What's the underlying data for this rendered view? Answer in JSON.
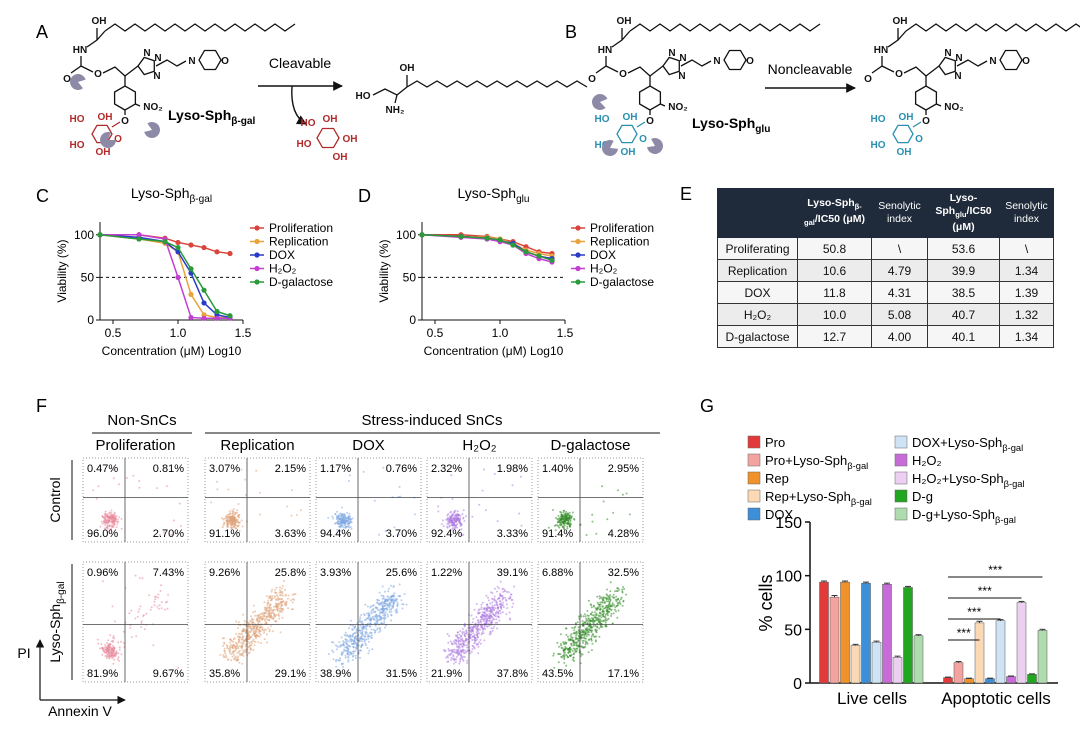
{
  "panel_a": {
    "label": "A",
    "arrow_label": "Cleavable",
    "compound": {
      "text": "Lyso-Sph",
      "sub": "β-gal"
    },
    "probe_atoms": [
      "OH",
      "HN",
      "O",
      "O",
      "N",
      "N",
      "N",
      "N",
      "O",
      "NO₂",
      "O"
    ],
    "sugar_atoms": [
      "HO",
      "OH",
      "HO",
      "OH",
      "O"
    ],
    "product_atoms": [
      "HO",
      "OH",
      "NH₂"
    ],
    "released_sugar_atoms": [
      "HO",
      "OH",
      "HO",
      "OH",
      "OH"
    ]
  },
  "panel_b": {
    "label": "B",
    "arrow_label": "Noncleavable",
    "compound": {
      "text": "Lyso-Sph",
      "sub": "glu"
    },
    "probe_atoms": [
      "OH",
      "HN",
      "O",
      "O",
      "N",
      "N",
      "N",
      "N",
      "O",
      "NO₂",
      "O"
    ],
    "sugar_atoms": [
      "HO",
      "OH",
      "HO",
      "OH",
      "O"
    ],
    "product_atoms": [
      "OH",
      "HN",
      "O",
      "O",
      "N",
      "N",
      "N",
      "N",
      "O",
      "NO₂",
      "O"
    ],
    "product_sugar_atoms": [
      "HO",
      "OH",
      "HO",
      "OH",
      "O"
    ]
  },
  "chart_data": [
    {
      "panel_label": "C",
      "type": "line",
      "title": {
        "text": "Lyso-Sph",
        "sub": "β-gal"
      },
      "x_label": "Concentration (μM) Log10",
      "y_label": "Viability (%)",
      "x": [
        0.4,
        0.7,
        0.9,
        1.0,
        1.1,
        1.2,
        1.3,
        1.4
      ],
      "xlim": [
        0.4,
        1.5
      ],
      "xticks": [
        0.5,
        {
          "value": 1,
          "label": "1.0"
        },
        1.5
      ],
      "ylim": [
        0,
        115
      ],
      "yticks": [
        0,
        50,
        100
      ],
      "reference_line": 50,
      "series": [
        {
          "name": "Proliferation",
          "color": "#d9453d",
          "values": [
            100,
            100,
            96,
            91,
            88,
            85,
            80,
            78
          ]
        },
        {
          "name": "Replication",
          "color": "#e8a33a",
          "values": [
            100,
            95,
            90,
            80,
            30,
            6,
            3,
            3
          ]
        },
        {
          "name": "DOX",
          "color": "#2b3bc9",
          "values": [
            100,
            97,
            92,
            80,
            55,
            20,
            6,
            3
          ]
        },
        {
          "name": "H₂O₂",
          "color": "#c23fd1",
          "values": [
            100,
            100,
            95,
            50,
            3,
            2,
            2,
            2
          ]
        },
        {
          "name": "D-galactose",
          "color": "#2a9a3a",
          "values": [
            100,
            95,
            92,
            85,
            60,
            35,
            10,
            5
          ]
        }
      ]
    },
    {
      "panel_label": "D",
      "type": "line",
      "title": {
        "text": "Lyso-Sph",
        "sub": "glu"
      },
      "x_label": "Concentration (μM) Log10",
      "y_label": "Viability (%)",
      "x": [
        0.4,
        0.7,
        0.9,
        1.0,
        1.1,
        1.2,
        1.3,
        1.4
      ],
      "xlim": [
        0.4,
        1.5
      ],
      "xticks": [
        0.5,
        {
          "value": 1,
          "label": "1.0"
        },
        1.5
      ],
      "ylim": [
        0,
        115
      ],
      "yticks": [
        0,
        50,
        100
      ],
      "reference_line": 50,
      "series": [
        {
          "name": "Proliferation",
          "color": "#d9453d",
          "values": [
            100,
            100,
            98,
            95,
            92,
            86,
            80,
            78
          ]
        },
        {
          "name": "Replication",
          "color": "#e8a33a",
          "values": [
            100,
            98,
            97,
            95,
            90,
            82,
            78,
            75
          ]
        },
        {
          "name": "DOX",
          "color": "#2b3bc9",
          "values": [
            100,
            98,
            96,
            93,
            90,
            80,
            75,
            72
          ]
        },
        {
          "name": "H₂O₂",
          "color": "#c23fd1",
          "values": [
            100,
            97,
            95,
            92,
            88,
            78,
            72,
            68
          ]
        },
        {
          "name": "D-galactose",
          "color": "#2a9a3a",
          "values": [
            100,
            98,
            96,
            94,
            88,
            80,
            75,
            70
          ]
        }
      ]
    },
    {
      "panel_label": "G",
      "type": "bar",
      "y_label": "% cells",
      "categories": [
        "Live cells",
        "Apoptotic cells"
      ],
      "ylim": [
        0,
        150
      ],
      "yticks": [
        0,
        50,
        100,
        150
      ],
      "significance": [
        "***",
        "***",
        "***",
        "***"
      ],
      "series": [
        {
          "name": "Pro",
          "color": "#e23a3a",
          "values": [
            94,
            5
          ],
          "errors": [
            1,
            0.5
          ]
        },
        {
          "name": {
            "text": "Pro+Lyso-Sph",
            "sub": "β-gal"
          },
          "color": "#f3a3a0",
          "values": [
            80,
            19
          ],
          "errors": [
            1.5,
            1
          ]
        },
        {
          "name": "Rep",
          "color": "#f0912a",
          "values": [
            94,
            4
          ],
          "errors": [
            1,
            0.5
          ]
        },
        {
          "name": {
            "text": "Rep+Lyso-Sph",
            "sub": "β-gal"
          },
          "color": "#fcd9b5",
          "values": [
            35,
            56
          ],
          "errors": [
            1,
            1.5
          ]
        },
        {
          "name": "DOX",
          "color": "#3d8fd8",
          "values": [
            93,
            4
          ],
          "errors": [
            1,
            0.5
          ]
        },
        {
          "name": {
            "text": "DOX+Lyso-Sph",
            "sub": "β-gal"
          },
          "color": "#cfe3f5",
          "values": [
            38,
            58
          ],
          "errors": [
            1,
            1
          ]
        },
        {
          "name": "H₂O₂",
          "color": "#c66bd8",
          "values": [
            92,
            6
          ],
          "errors": [
            1,
            0.5
          ]
        },
        {
          "name": {
            "text": "H₂O₂+Lyso-Sph",
            "sub": "β-gal"
          },
          "color": "#ecd0f2",
          "values": [
            24,
            75
          ],
          "errors": [
            1,
            1
          ]
        },
        {
          "name": "D-g",
          "color": "#22a622",
          "values": [
            89,
            8
          ],
          "errors": [
            1,
            0.5
          ]
        },
        {
          "name": {
            "text": "D-g+Lyso-Sph",
            "sub": "β-gal"
          },
          "color": "#aedcae",
          "values": [
            44,
            49
          ],
          "errors": [
            1,
            1
          ]
        }
      ]
    }
  ],
  "panel_e": {
    "label": "E",
    "header": [
      {
        "text": "Lyso-Sph",
        "sub": "β-gal",
        "tail": "/IC50 (μM)"
      },
      "Senolytic index",
      {
        "text": "Lyso-Sph",
        "sub": "glu",
        "tail": "/IC50 (μM)"
      },
      "Senolytic index"
    ],
    "rows": [
      [
        "Proliferating",
        "50.8",
        "\\",
        "53.6",
        "\\"
      ],
      [
        "Replication",
        "10.6",
        "4.79",
        "39.9",
        "1.34"
      ],
      [
        "DOX",
        "11.8",
        "4.31",
        "38.5",
        "1.39"
      ],
      [
        "H₂O₂",
        "10.0",
        "5.08",
        "40.7",
        "1.32"
      ],
      [
        "D-galactose",
        "12.7",
        "4.00",
        "40.1",
        "1.34"
      ]
    ]
  },
  "panel_f": {
    "label": "F",
    "group_headers": [
      "Non-SnCs",
      "Stress-induced SnCs"
    ],
    "columns": [
      "Proliferation",
      "Replication",
      "DOX",
      "H₂O₂",
      "D-galactose"
    ],
    "rows": [
      {
        "label": "Control",
        "quadrants": [
          [
            "0.47%",
            "0.81%",
            "96.0%",
            "2.70%"
          ],
          [
            "3.07%",
            "2.15%",
            "91.1%",
            "3.63%"
          ],
          [
            "1.17%",
            "0.76%",
            "94.4%",
            "3.70%"
          ],
          [
            "2.32%",
            "1.98%",
            "92.4%",
            "3.33%"
          ],
          [
            "1.40%",
            "2.95%",
            "91.4%",
            "4.28%"
          ]
        ]
      },
      {
        "label": {
          "text": "Lyso-Sph",
          "sub": "β-gal"
        },
        "quadrants": [
          [
            "0.96%",
            "7.43%",
            "81.9%",
            "9.67%"
          ],
          [
            "9.26%",
            "25.8%",
            "35.8%",
            "29.1%"
          ],
          [
            "3.93%",
            "25.6%",
            "38.9%",
            "31.5%"
          ],
          [
            "1.22%",
            "39.1%",
            "21.9%",
            "37.8%"
          ],
          [
            "6.88%",
            "32.5%",
            "43.5%",
            "17.1%"
          ]
        ]
      }
    ],
    "y_axis": "PI",
    "x_axis": "Annexin V"
  }
}
